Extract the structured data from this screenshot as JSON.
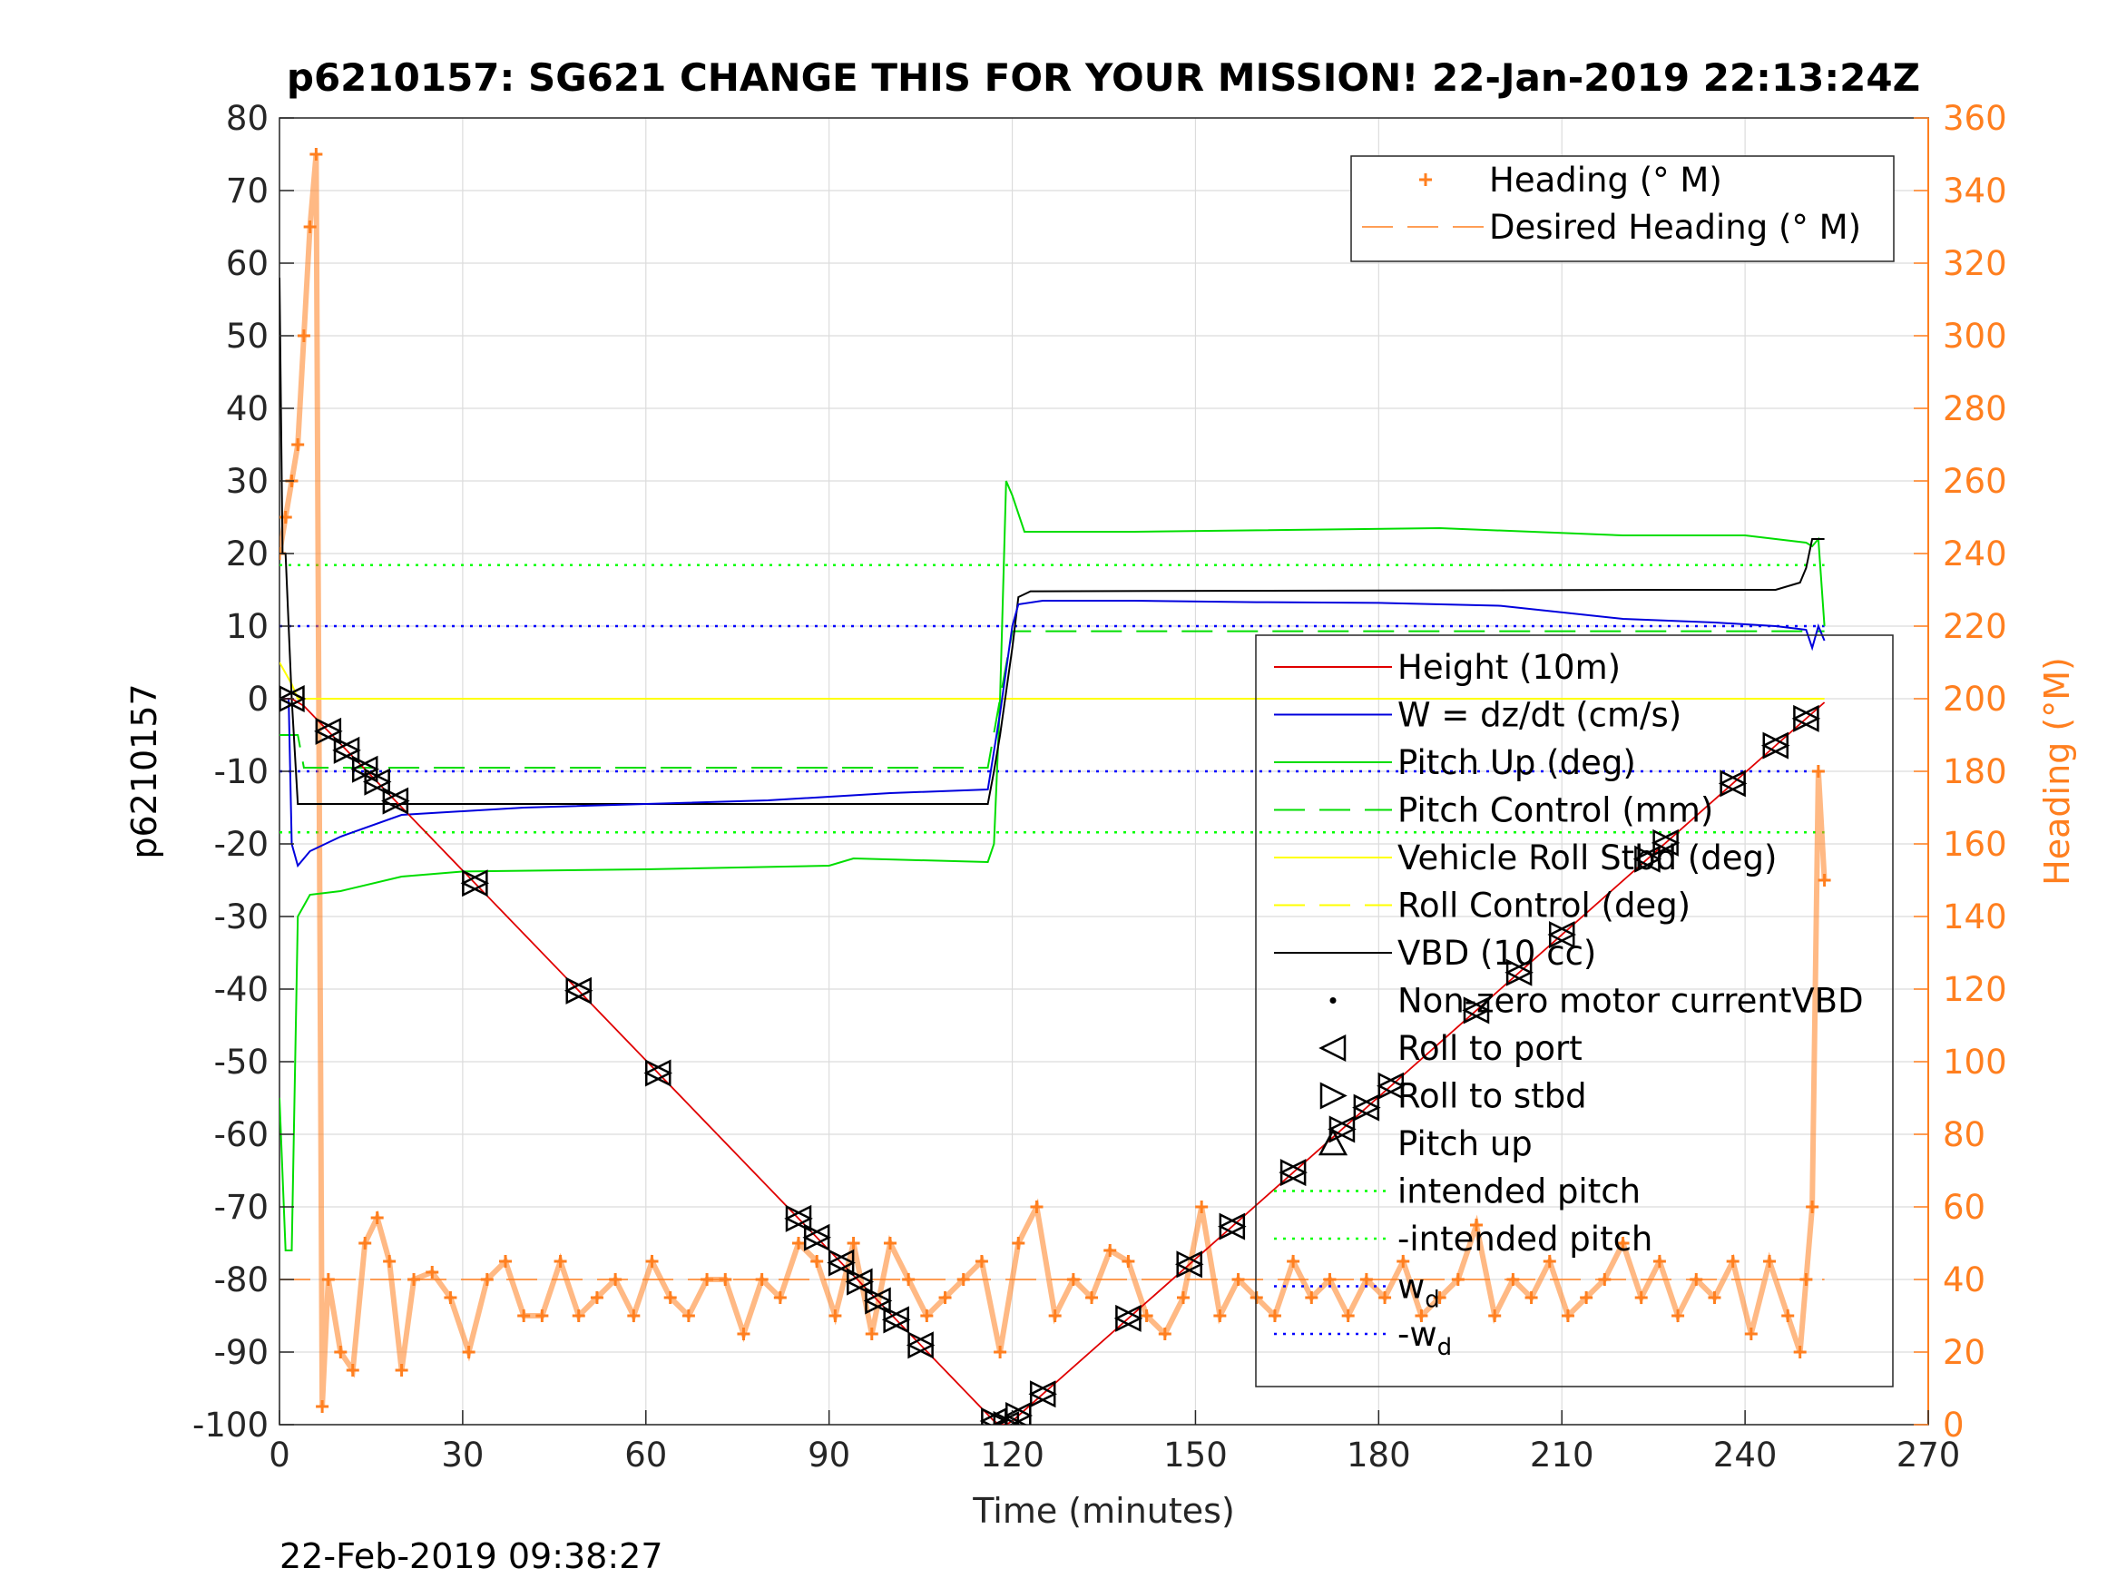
{
  "title": "p6210157: SG621 CHANGE THIS FOR YOUR MISSION! 22-Jan-2019 22:13:24Z",
  "footer_timestamp": "22-Feb-2019 09:38:27",
  "colors": {
    "height": "#e00000",
    "w": "#0000dd",
    "pitch": "#00dd00",
    "roll": "#ffff00",
    "vbd": "#000000",
    "heading": "#ff7f1f",
    "intended": "#00ff00",
    "wd": "#0000ff"
  },
  "chart_data": {
    "type": "line",
    "xlabel": "Time (minutes)",
    "ylabel": "p6210157",
    "y2label": "Heading (°M)",
    "xlim": [
      0,
      270
    ],
    "ylim": [
      -100,
      80
    ],
    "y2lim": [
      0,
      360
    ],
    "xticks": [
      0,
      30,
      60,
      90,
      120,
      150,
      180,
      210,
      240,
      270
    ],
    "yticks": [
      -100,
      -90,
      -80,
      -70,
      -60,
      -50,
      -40,
      -30,
      -20,
      -10,
      0,
      10,
      20,
      30,
      40,
      50,
      60,
      70,
      80
    ],
    "y2ticks": [
      0,
      20,
      40,
      60,
      80,
      100,
      120,
      140,
      160,
      180,
      200,
      220,
      240,
      260,
      280,
      300,
      320,
      340,
      360
    ],
    "grid": true,
    "legend_right_axis": {
      "placement": "top-right",
      "entries": [
        "Heading (° M)",
        "Desired Heading (° M)"
      ]
    },
    "legend_left_axis": {
      "placement": "right",
      "entries": [
        "Height (10m)",
        "W = dz/dt (cm/s)",
        "Pitch Up (deg)",
        "Pitch Control (mm)",
        "Vehicle Roll Stbd (deg)",
        "Roll Control (deg)",
        "VBD (10 cc)",
        "Non-zero motor currentVBD",
        "Roll to port",
        "Roll to stbd",
        "Pitch up",
        "intended pitch",
        "-intended pitch",
        "w",
        "-w"
      ],
      "subscript_entries": {
        "w": "d",
        "-w": "d"
      }
    },
    "series": [
      {
        "name": "Height (10m)",
        "axis": "left",
        "x": [
          0,
          2,
          4,
          117,
          118,
          119,
          120,
          253
        ],
        "y": [
          0,
          0,
          -1,
          -99.5,
          -100,
          -100,
          -99.5,
          -0.5
        ]
      },
      {
        "name": "W = dz/dt (cm/s)",
        "axis": "left",
        "x": [
          0,
          1.5,
          2,
          3,
          5,
          10,
          20,
          40,
          60,
          80,
          100,
          116,
          118,
          120,
          121,
          125,
          140,
          160,
          180,
          200,
          220,
          235,
          245,
          250,
          251,
          252,
          253
        ],
        "y": [
          0,
          0,
          -20,
          -23,
          -21,
          -19,
          -16,
          -15,
          -14.5,
          -14,
          -13,
          -12.5,
          -2,
          10,
          13,
          13.5,
          13.5,
          13.3,
          13.2,
          12.8,
          11,
          10.5,
          10,
          9.5,
          7,
          10,
          8
        ]
      },
      {
        "name": "Pitch Up (deg)",
        "axis": "left",
        "x": [
          0,
          1,
          2,
          3,
          5,
          10,
          20,
          30,
          60,
          90,
          94,
          116,
          117,
          118,
          119,
          120,
          122,
          140,
          160,
          190,
          220,
          240,
          250,
          251,
          252,
          253
        ],
        "y": [
          -55,
          -76,
          -76,
          -30,
          -27,
          -26.5,
          -24.5,
          -23.8,
          -23.5,
          -23,
          -22,
          -22.5,
          -20,
          0,
          30,
          28,
          23,
          23,
          23.2,
          23.5,
          22.5,
          22.5,
          21.5,
          21,
          22,
          10
        ]
      },
      {
        "name": "Pitch Control (mm)",
        "axis": "left",
        "x": [
          0,
          3,
          4,
          116,
          118,
          120,
          253
        ],
        "y": [
          -5,
          -5,
          -9.5,
          -9.5,
          0,
          9.3,
          9.3
        ]
      },
      {
        "name": "Vehicle Roll Stbd (deg)",
        "axis": "left",
        "x": [
          0,
          2,
          3,
          253
        ],
        "y": [
          5,
          2,
          0,
          0
        ]
      },
      {
        "name": "VBD (10 cc)",
        "axis": "left",
        "x": [
          0,
          0.5,
          1,
          2,
          3,
          116,
          117,
          118,
          120,
          121,
          123,
          230,
          245,
          249,
          250,
          251,
          253
        ],
        "y": [
          58,
          20,
          20,
          0,
          -14.5,
          -14.5,
          -10,
          -5,
          7,
          14,
          14.8,
          15,
          15,
          16,
          18,
          22,
          22
        ]
      },
      {
        "name": "intended pitch",
        "axis": "left",
        "x": [
          0,
          253
        ],
        "y": [
          18.4,
          18.4
        ]
      },
      {
        "name": "-intended pitch",
        "axis": "left",
        "x": [
          0,
          253
        ],
        "y": [
          -18.4,
          -18.4
        ]
      },
      {
        "name": "w",
        "axis": "left",
        "x": [
          0,
          253
        ],
        "y": [
          10,
          10
        ]
      },
      {
        "name": "-w",
        "axis": "left",
        "x": [
          0,
          253
        ],
        "y": [
          -10,
          -10
        ]
      },
      {
        "name": "Desired Heading (° M)",
        "axis": "right",
        "x": [
          0,
          253
        ],
        "y": [
          40,
          40
        ]
      },
      {
        "name": "Heading (° M)",
        "axis": "right",
        "x": [
          0,
          1,
          2,
          3,
          4,
          5,
          6,
          7,
          8,
          10,
          12,
          14,
          16,
          18,
          20,
          22,
          25,
          28,
          31,
          34,
          37,
          40,
          43,
          46,
          49,
          52,
          55,
          58,
          61,
          64,
          67,
          70,
          73,
          76,
          79,
          82,
          85,
          88,
          91,
          94,
          97,
          100,
          103,
          106,
          109,
          112,
          115,
          118,
          121,
          124,
          127,
          130,
          133,
          136,
          139,
          142,
          145,
          148,
          151,
          154,
          157,
          160,
          163,
          166,
          169,
          172,
          175,
          178,
          181,
          184,
          187,
          190,
          193,
          196,
          199,
          202,
          205,
          208,
          211,
          214,
          217,
          220,
          223,
          226,
          229,
          232,
          235,
          238,
          241,
          244,
          247,
          249,
          250,
          251,
          252,
          253
        ],
        "y": [
          240,
          250,
          260,
          270,
          300,
          330,
          350,
          5,
          40,
          20,
          15,
          50,
          57,
          45,
          15,
          40,
          42,
          35,
          20,
          40,
          45,
          30,
          30,
          45,
          30,
          35,
          40,
          30,
          45,
          35,
          30,
          40,
          40,
          25,
          40,
          35,
          50,
          45,
          30,
          50,
          25,
          50,
          40,
          30,
          35,
          40,
          45,
          20,
          50,
          60,
          30,
          40,
          35,
          48,
          45,
          30,
          25,
          35,
          60,
          30,
          40,
          35,
          30,
          45,
          35,
          40,
          30,
          40,
          35,
          45,
          30,
          35,
          40,
          55,
          30,
          40,
          35,
          45,
          30,
          35,
          40,
          50,
          35,
          45,
          30,
          40,
          35,
          45,
          25,
          45,
          30,
          20,
          40,
          60,
          180,
          150
        ]
      }
    ]
  }
}
